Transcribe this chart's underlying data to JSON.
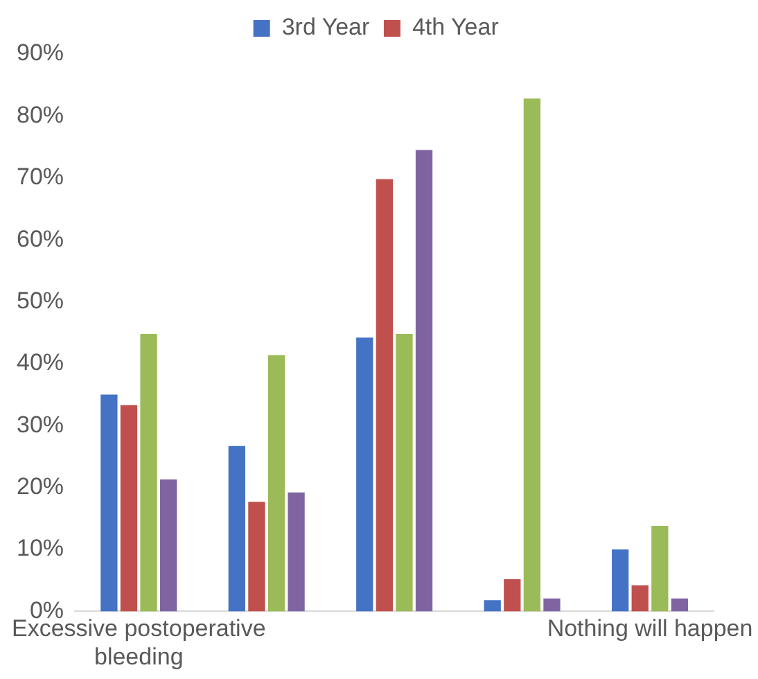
{
  "chart_data": {
    "type": "bar",
    "categories": [
      "Excessive postoperative bleeding",
      null,
      null,
      null,
      "Nothing will happen"
    ],
    "series": [
      {
        "name": "3rd Year",
        "color": "#4472c4",
        "values": [
          35,
          26.7,
          44.2,
          1.8,
          10
        ]
      },
      {
        "name": "4th Year",
        "color": "#c0504d",
        "values": [
          33.3,
          17.7,
          69.8,
          5.2,
          4.2
        ]
      },
      {
        "color": "#9bbb59",
        "values": [
          44.8,
          41.4,
          44.8,
          82.8,
          13.8
        ]
      },
      {
        "color": "#8064a2",
        "values": [
          21.3,
          19.2,
          74.5,
          2.1,
          2.1
        ]
      }
    ],
    "ylim": [
      0,
      90
    ],
    "yticks": [
      {
        "value": 0,
        "label": "0%"
      },
      {
        "value": 10,
        "label": "10%"
      },
      {
        "value": 20,
        "label": "20%"
      },
      {
        "value": 30,
        "label": "30%"
      },
      {
        "value": 40,
        "label": "40%"
      },
      {
        "value": 50,
        "label": "50%"
      },
      {
        "value": 60,
        "label": "60%"
      },
      {
        "value": 70,
        "label": "70%"
      },
      {
        "value": 80,
        "label": "80%"
      },
      {
        "value": 90,
        "label": "90%"
      }
    ],
    "grid": false,
    "legend": "top"
  }
}
